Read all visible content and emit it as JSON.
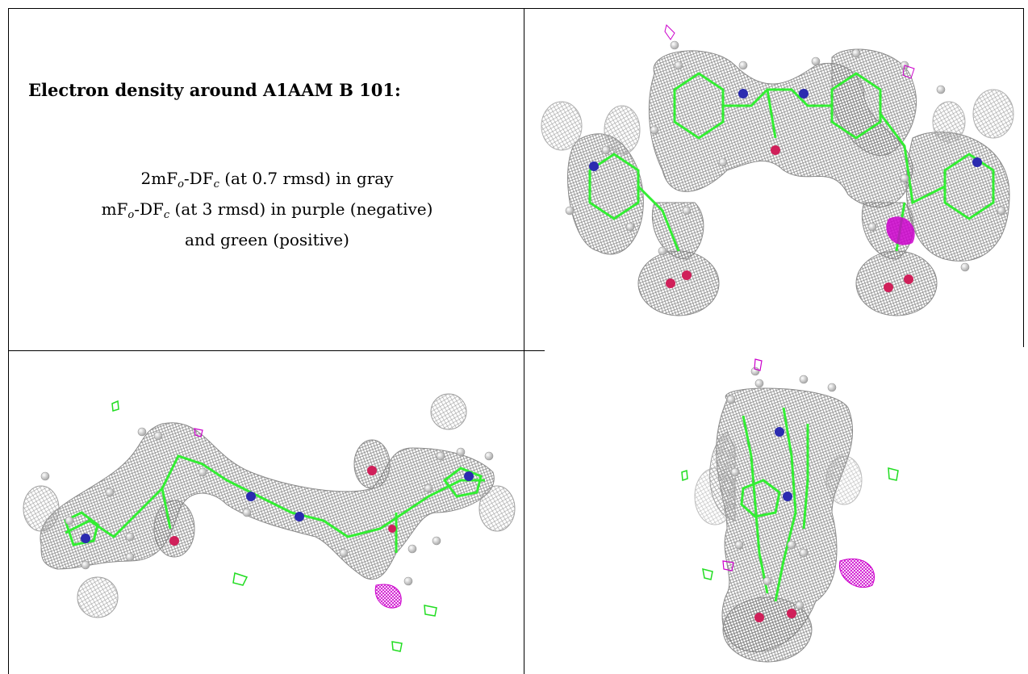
{
  "figure": {
    "heading": "Electron density around A1AAM B 101:",
    "line1": {
      "prefix": "2mF",
      "sub1": "o",
      "mid": "-DF",
      "sub2": "c",
      "suffix": " (at 0.7 rmsd) in gray"
    },
    "line2": {
      "prefix": "mF",
      "sub1": "o",
      "mid": "-DF",
      "sub2": "c",
      "suffix": " (at 3 rmsd) in purple (negative)"
    },
    "line3": "and green (positive)"
  },
  "colors": {
    "density_map": "#8a8a8a",
    "carbon_bonds": "#33ee33",
    "nitrogen": "#2b2bb0",
    "oxygen": "#d0205a",
    "negative_difference": "#cc00cc",
    "positive_difference": "#22dd22",
    "hydrogen": "#e6e6e6"
  },
  "panels": [
    {
      "name": "view-front",
      "kind": "molecule-render"
    },
    {
      "name": "view-side",
      "kind": "molecule-render"
    },
    {
      "name": "view-end",
      "kind": "molecule-render"
    }
  ]
}
